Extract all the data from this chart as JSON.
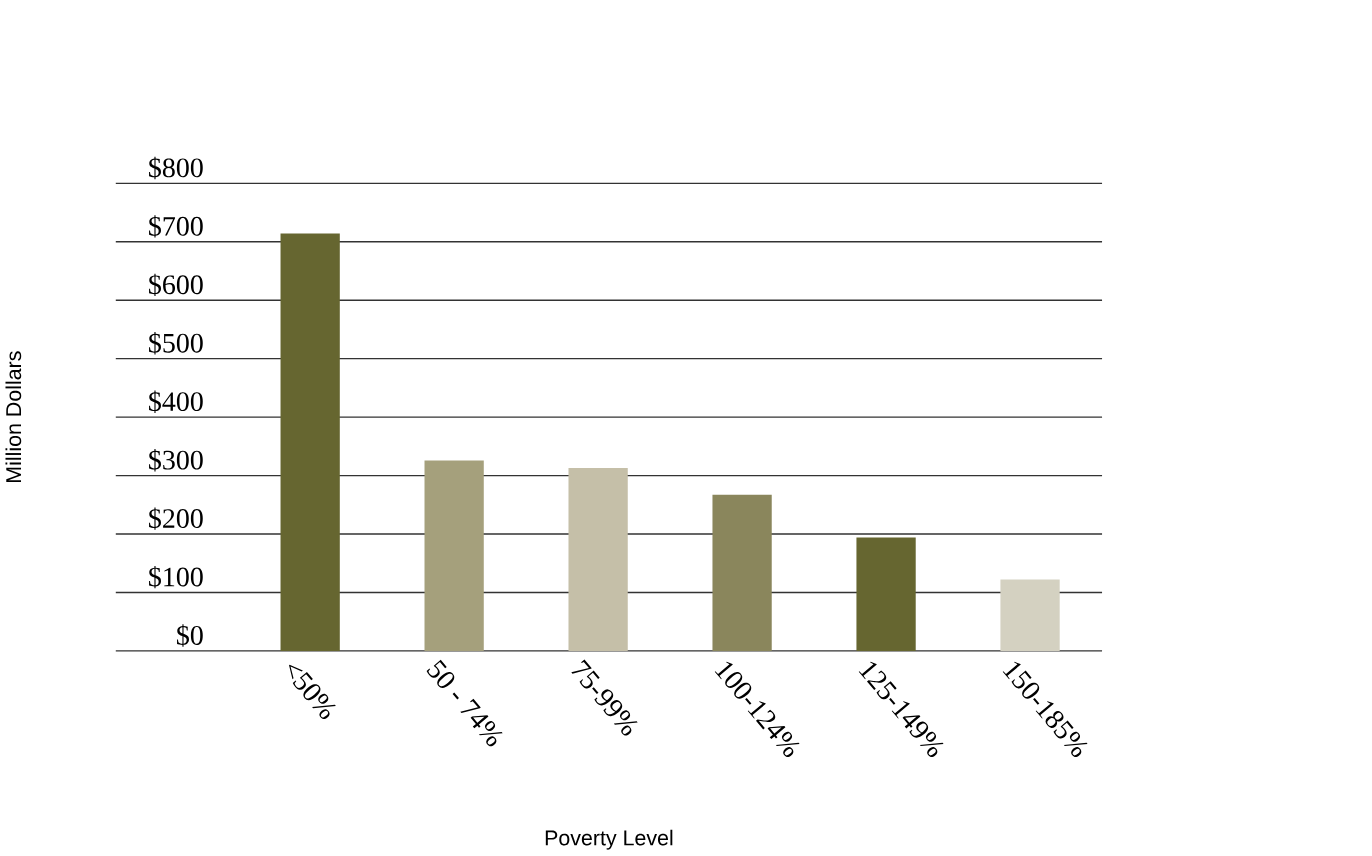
{
  "chart_data": {
    "type": "bar",
    "xlabel": "Poverty Level",
    "ylabel": "Million Dollars",
    "categories": [
      "<50%",
      "50 - 74%",
      "75-99%",
      "100-124%",
      "125-149%",
      "150-185%"
    ],
    "values": [
      714,
      326,
      313,
      267,
      194,
      122
    ],
    "colors": [
      "#666630",
      "#a5a07c",
      "#c5bfa8",
      "#8a865c",
      "#666630",
      "#d4d1c1"
    ],
    "ylim": [
      0,
      800
    ],
    "yticks": [
      {
        "value": 0,
        "label": "$0"
      },
      {
        "value": 100,
        "label": "$100"
      },
      {
        "value": 200,
        "label": "$200"
      },
      {
        "value": 300,
        "label": "$300"
      },
      {
        "value": 400,
        "label": "$400"
      },
      {
        "value": 500,
        "label": "$500"
      },
      {
        "value": 600,
        "label": "$600"
      },
      {
        "value": 700,
        "label": "$700"
      },
      {
        "value": 800,
        "label": "$800"
      }
    ],
    "grid": "y"
  }
}
